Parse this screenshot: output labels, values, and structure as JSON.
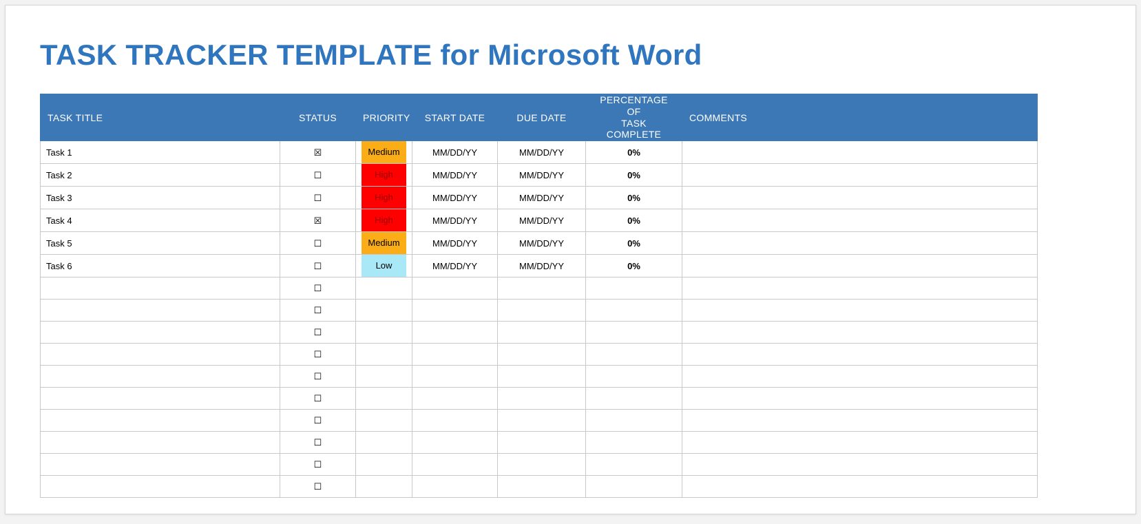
{
  "page": {
    "title_strong": "TASK TRACKER TEMPLATE ",
    "title_rest": "for Microsoft Word"
  },
  "table": {
    "headers": {
      "task_title": "TASK TITLE",
      "status": "STATUS",
      "priority": "PRIORITY",
      "start_date": "START DATE",
      "due_date": "DUE DATE",
      "pct_line1": "PERCENTAGE OF",
      "pct_line2": "TASK COMPLETE",
      "comments": "COMMENTS"
    },
    "colors": {
      "header_bg": "#3c78b5",
      "header_fg": "#ffffff",
      "border": "#c8c8c8",
      "priority_medium_bg": "#fbad17",
      "priority_medium_fg": "#000000",
      "priority_high_bg": "#fe0000",
      "priority_high_fg": "#9a0000",
      "priority_low_bg": "#a8e8f7",
      "priority_low_fg": "#000000"
    },
    "glyphs": {
      "checked": "☒",
      "unchecked": "☐"
    },
    "rows": [
      {
        "title": "Task 1",
        "checked": true,
        "priority": "Medium",
        "start": "MM/DD/YY",
        "due": "MM/DD/YY",
        "pct": "0%",
        "comments": ""
      },
      {
        "title": "Task 2",
        "checked": false,
        "priority": "High",
        "start": "MM/DD/YY",
        "due": "MM/DD/YY",
        "pct": "0%",
        "comments": ""
      },
      {
        "title": "Task 3",
        "checked": false,
        "priority": "High",
        "start": "MM/DD/YY",
        "due": "MM/DD/YY",
        "pct": "0%",
        "comments": ""
      },
      {
        "title": "Task 4",
        "checked": true,
        "priority": "High",
        "start": "MM/DD/YY",
        "due": "MM/DD/YY",
        "pct": "0%",
        "comments": ""
      },
      {
        "title": "Task 5",
        "checked": false,
        "priority": "Medium",
        "start": "MM/DD/YY",
        "due": "MM/DD/YY",
        "pct": "0%",
        "comments": ""
      },
      {
        "title": "Task 6",
        "checked": false,
        "priority": "Low",
        "start": "MM/DD/YY",
        "due": "MM/DD/YY",
        "pct": "0%",
        "comments": ""
      },
      {
        "title": "",
        "checked": false,
        "priority": "",
        "start": "",
        "due": "",
        "pct": "",
        "comments": ""
      },
      {
        "title": "",
        "checked": false,
        "priority": "",
        "start": "",
        "due": "",
        "pct": "",
        "comments": ""
      },
      {
        "title": "",
        "checked": false,
        "priority": "",
        "start": "",
        "due": "",
        "pct": "",
        "comments": ""
      },
      {
        "title": "",
        "checked": false,
        "priority": "",
        "start": "",
        "due": "",
        "pct": "",
        "comments": ""
      },
      {
        "title": "",
        "checked": false,
        "priority": "",
        "start": "",
        "due": "",
        "pct": "",
        "comments": ""
      },
      {
        "title": "",
        "checked": false,
        "priority": "",
        "start": "",
        "due": "",
        "pct": "",
        "comments": ""
      },
      {
        "title": "",
        "checked": false,
        "priority": "",
        "start": "",
        "due": "",
        "pct": "",
        "comments": ""
      },
      {
        "title": "",
        "checked": false,
        "priority": "",
        "start": "",
        "due": "",
        "pct": "",
        "comments": ""
      },
      {
        "title": "",
        "checked": false,
        "priority": "",
        "start": "",
        "due": "",
        "pct": "",
        "comments": ""
      },
      {
        "title": "",
        "checked": false,
        "priority": "",
        "start": "",
        "due": "",
        "pct": "",
        "comments": ""
      }
    ]
  }
}
